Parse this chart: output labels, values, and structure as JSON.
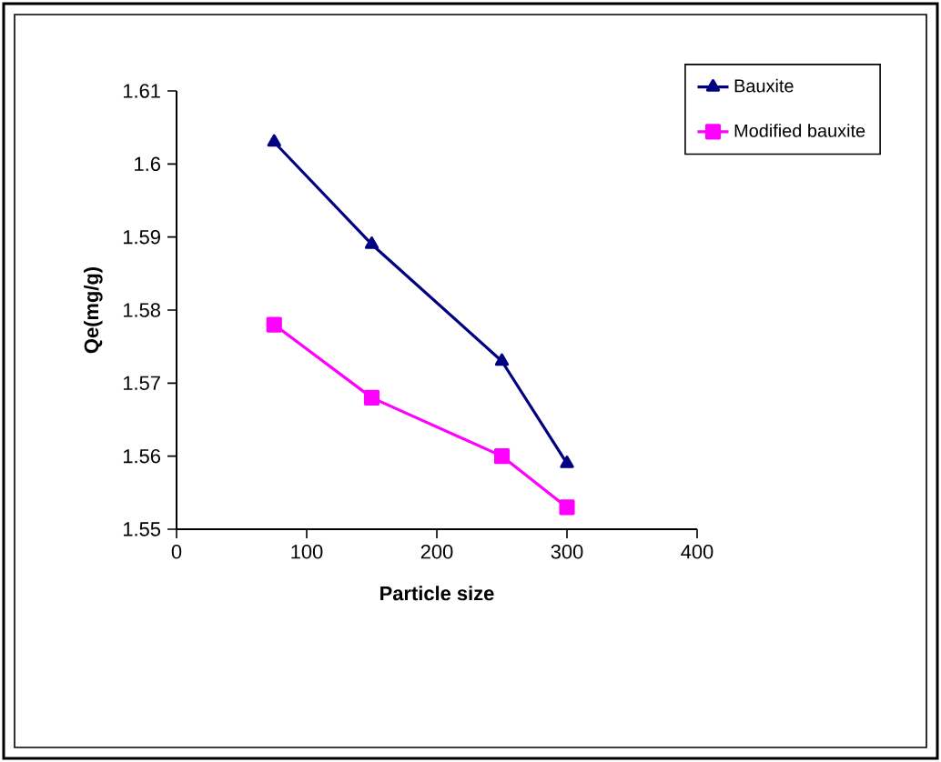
{
  "chart_data": {
    "type": "line",
    "xlabel": "Particle size",
    "ylabel": "Qe(mg/g)",
    "xlim": [
      0,
      400
    ],
    "xticks": [
      0,
      100,
      200,
      300,
      400
    ],
    "ylim": [
      1.55,
      1.61
    ],
    "yticks": [
      1.55,
      1.56,
      1.57,
      1.58,
      1.59,
      {
        "value": 1.6,
        "label": "1.6"
      },
      1.61
    ],
    "x": [
      75,
      150,
      250,
      300
    ],
    "series": [
      {
        "name": "Bauxite",
        "color": "#000080",
        "marker": "triangle",
        "values": [
          1.603,
          1.589,
          1.573,
          1.559
        ]
      },
      {
        "name": "Modified bauxite",
        "color": "#ff00ff",
        "marker": "square",
        "values": [
          1.578,
          1.568,
          1.56,
          1.553
        ]
      }
    ],
    "legend": "top right",
    "grid": false,
    "line_style": "solid"
  }
}
